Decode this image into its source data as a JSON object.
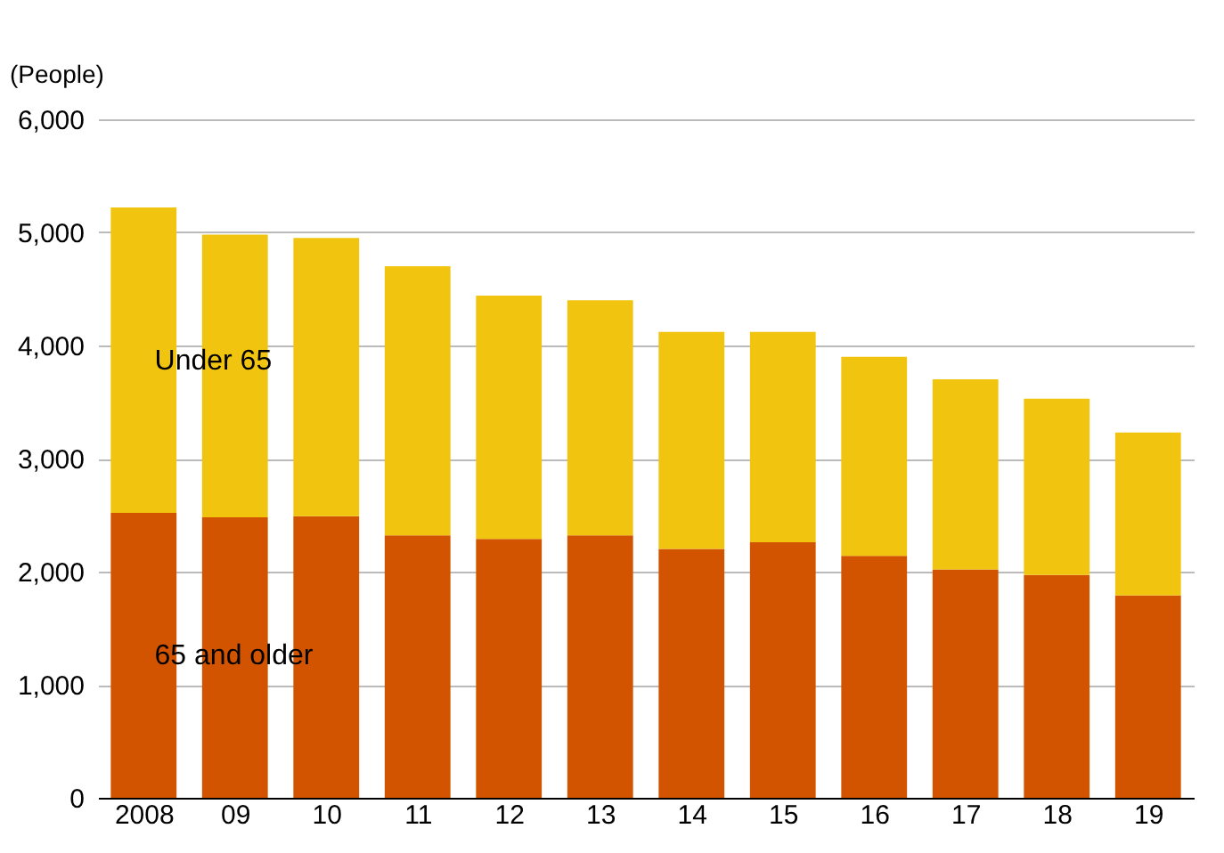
{
  "chart_data": {
    "type": "bar",
    "stacked": true,
    "ylabel": "(People)",
    "categories": [
      "2008",
      "09",
      "10",
      "11",
      "12",
      "13",
      "14",
      "15",
      "16",
      "17",
      "18",
      "19"
    ],
    "series": [
      {
        "name": "65 and older",
        "color": "#d35400",
        "values": [
          2520,
          2480,
          2490,
          2320,
          2290,
          2320,
          2200,
          2260,
          2140,
          2020,
          1970,
          1790
        ]
      },
      {
        "name": "Under 65",
        "color": "#f1c40f",
        "values": [
          2700,
          2500,
          2460,
          2380,
          2150,
          2080,
          1920,
          1860,
          1760,
          1680,
          1560,
          1440
        ]
      }
    ],
    "ylim": [
      0,
      6000
    ],
    "yticks": [
      {
        "value": 0,
        "label": "0"
      },
      {
        "value": 1000,
        "label": "1,000"
      },
      {
        "value": 2000,
        "label": "2,000"
      },
      {
        "value": 3000,
        "label": "3,000"
      },
      {
        "value": 4000,
        "label": "4,000"
      },
      {
        "value": 5000,
        "label": "5,000"
      },
      {
        "value": 6000,
        "label": "6,000"
      }
    ],
    "grid": "y"
  }
}
